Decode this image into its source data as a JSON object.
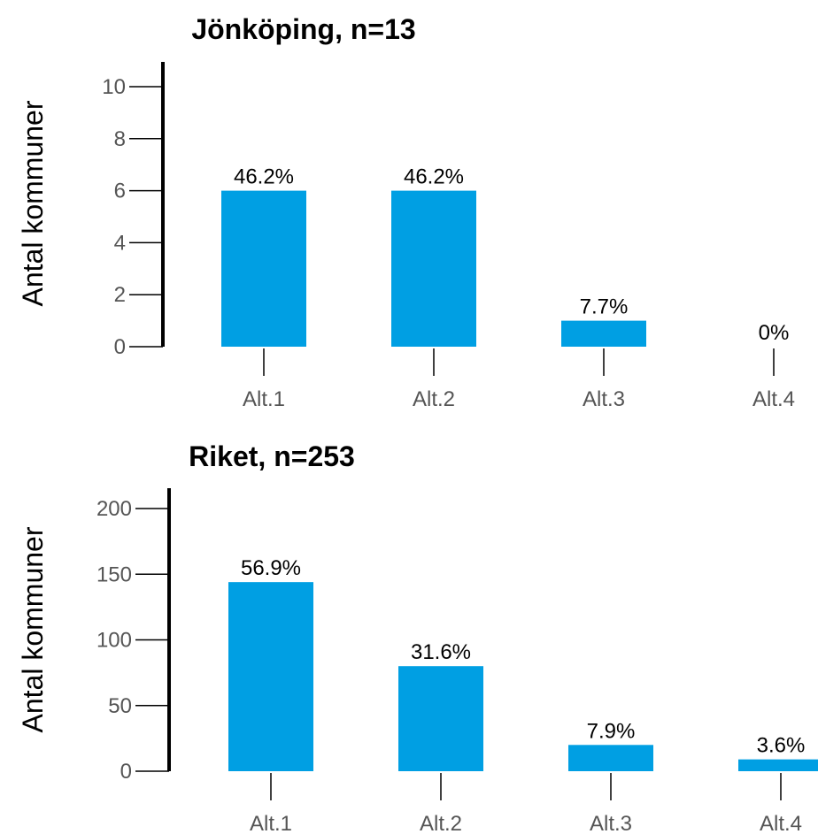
{
  "chart_data": [
    {
      "type": "bar",
      "title": "Jönköping, n=13",
      "ylabel": "Antal kommuner",
      "xlabel": "",
      "ylim": [
        0,
        10
      ],
      "yticks": [
        0,
        2,
        4,
        6,
        8,
        10
      ],
      "categories": [
        "Alt.1",
        "Alt.2",
        "Alt.3",
        "Alt.4"
      ],
      "values": [
        6,
        6,
        1,
        0
      ],
      "labels": [
        "46.2%",
        "46.2%",
        "7.7%",
        "0%"
      ],
      "color": "#009fe3"
    },
    {
      "type": "bar",
      "title": "Riket, n=253",
      "ylabel": "Antal kommuner",
      "xlabel": "",
      "ylim": [
        0,
        200
      ],
      "yticks": [
        0,
        50,
        100,
        150,
        200
      ],
      "categories": [
        "Alt.1",
        "Alt.2",
        "Alt.3",
        "Alt.4"
      ],
      "values": [
        144,
        80,
        20,
        9
      ],
      "labels": [
        "56.9%",
        "31.6%",
        "7.9%",
        "3.6%"
      ],
      "color": "#009fe3"
    }
  ]
}
